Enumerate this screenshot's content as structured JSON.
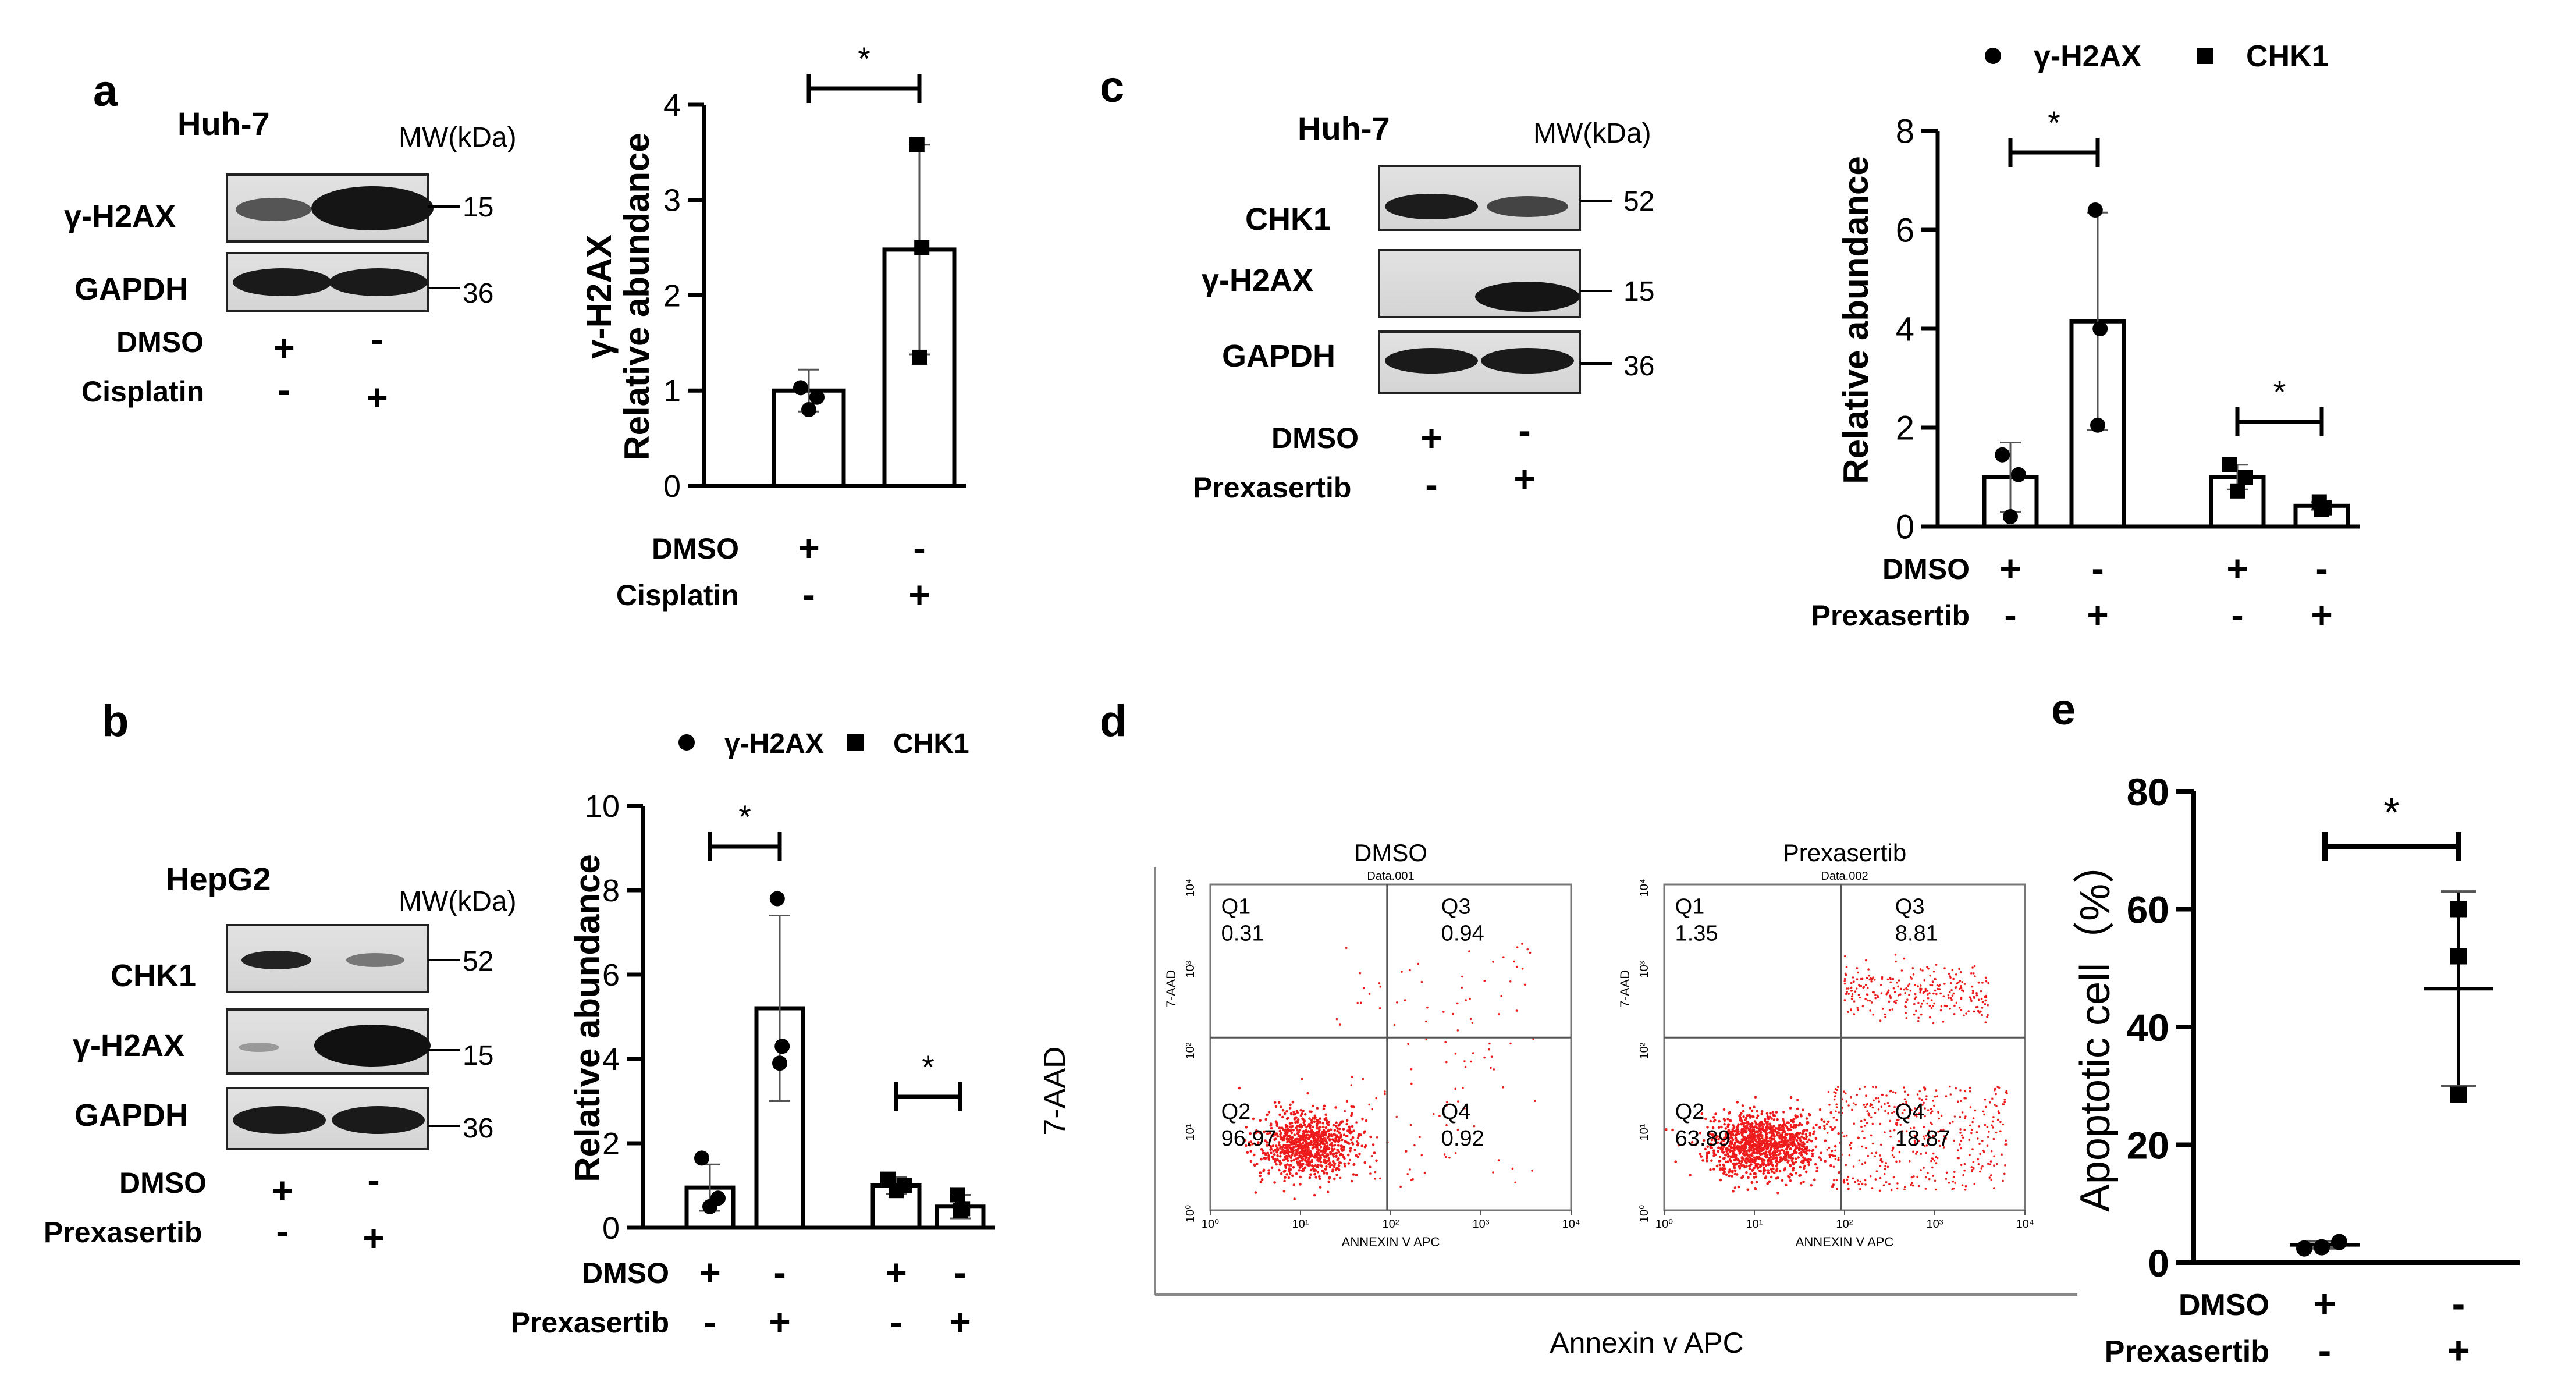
{
  "panels": {
    "a": {
      "label": "a",
      "cell_line": "Huh-7",
      "mw_header": "MW(kDa)",
      "blot_rows": [
        {
          "name": "γ-H2AX",
          "mw": "15"
        },
        {
          "name": "GAPDH",
          "mw": "36"
        }
      ],
      "treatments": [
        {
          "name": "DMSO",
          "signs": [
            "+",
            "-"
          ]
        },
        {
          "name": "Cisplatin",
          "signs": [
            "-",
            "+"
          ]
        }
      ]
    },
    "b": {
      "label": "b",
      "cell_line": "HepG2",
      "mw_header": "MW(kDa)",
      "blot_rows": [
        {
          "name": "CHK1",
          "mw": "52"
        },
        {
          "name": "γ-H2AX",
          "mw": "15"
        },
        {
          "name": "GAPDH",
          "mw": "36"
        }
      ],
      "treatments": [
        {
          "name": "DMSO",
          "signs": [
            "+",
            "-"
          ]
        },
        {
          "name": "Prexasertib",
          "signs": [
            "-",
            "+"
          ]
        }
      ]
    },
    "c": {
      "label": "c",
      "cell_line": "Huh-7",
      "mw_header": "MW(kDa)",
      "blot_rows": [
        {
          "name": "CHK1",
          "mw": "52"
        },
        {
          "name": "γ-H2AX",
          "mw": "15"
        },
        {
          "name": "GAPDH",
          "mw": "36"
        }
      ],
      "treatments": [
        {
          "name": "DMSO",
          "signs": [
            "+",
            "-"
          ]
        },
        {
          "name": "Prexasertib",
          "signs": [
            "-",
            "+"
          ]
        }
      ]
    },
    "d": {
      "label": "d",
      "y_axis": "7-AAD",
      "x_axis": "Annexin v APC",
      "plot_y_label": "7-AAD",
      "plot_x_label": "ANNEXIN V APC",
      "ticks": [
        "10⁰",
        "10¹",
        "10²",
        "10³",
        "10⁴"
      ],
      "plots": [
        {
          "title": "DMSO",
          "subtitle": "Data.001",
          "Q1": "0.31",
          "Q2": "96.97",
          "Q3": "0.94",
          "Q4": "0.92"
        },
        {
          "title": "Prexasertib",
          "subtitle": "Data.002",
          "Q1": "1.35",
          "Q2": "63.89",
          "Q3": "8.81",
          "Q4": "18.87"
        }
      ],
      "q_names": [
        "Q1",
        "Q2",
        "Q3",
        "Q4"
      ],
      "scatter_color": "#ee1c1c"
    },
    "e": {
      "label": "e"
    }
  },
  "chart_data": [
    {
      "id": "a",
      "type": "bar",
      "ylabel_lines": [
        "γ-H2AX",
        "Relative abundance"
      ],
      "ylim": [
        0,
        4
      ],
      "yticks": [
        0,
        1,
        2,
        3,
        4
      ],
      "bars": [
        {
          "mean": 1.0,
          "sd": 0.22,
          "points": [
            1.03,
            0.93,
            0.8
          ],
          "marker": "circle"
        },
        {
          "mean": 2.48,
          "sd": 1.1,
          "points": [
            3.58,
            2.5,
            1.35
          ],
          "marker": "square"
        }
      ],
      "significance": [
        {
          "from": 0,
          "to": 1,
          "label": "*"
        }
      ],
      "x_rows": [
        {
          "name": "DMSO",
          "signs": [
            "+",
            "-"
          ]
        },
        {
          "name": "Cisplatin",
          "signs": [
            "-",
            "+"
          ]
        }
      ]
    },
    {
      "id": "b",
      "type": "bar",
      "ylabel": "Relative abundance",
      "ylim": [
        0,
        10
      ],
      "yticks": [
        0,
        2,
        4,
        6,
        8,
        10
      ],
      "legend": [
        {
          "marker": "circle",
          "label": "γ-H2AX"
        },
        {
          "marker": "square",
          "label": "CHK1"
        }
      ],
      "bars": [
        {
          "mean": 0.95,
          "sd": 0.55,
          "points": [
            1.65,
            0.7,
            0.5
          ],
          "marker": "circle"
        },
        {
          "mean": 5.2,
          "sd": 2.2,
          "points": [
            7.8,
            4.3,
            3.9
          ],
          "marker": "circle"
        },
        {
          "mean": 1.0,
          "sd": 0.2,
          "points": [
            1.15,
            1.0,
            0.88
          ],
          "marker": "square"
        },
        {
          "mean": 0.5,
          "sd": 0.28,
          "points": [
            0.78,
            0.45,
            0.4
          ],
          "marker": "square"
        }
      ],
      "significance": [
        {
          "from": 0,
          "to": 1,
          "label": "*"
        },
        {
          "from": 2,
          "to": 3,
          "label": "*"
        }
      ],
      "x_rows": [
        {
          "name": "DMSO",
          "signs": [
            "+",
            "-",
            "+",
            "-"
          ]
        },
        {
          "name": "Prexasertib",
          "signs": [
            "-",
            "+",
            "-",
            "+"
          ]
        }
      ]
    },
    {
      "id": "c",
      "type": "bar",
      "ylabel": "Relative abundance",
      "ylim": [
        0,
        8
      ],
      "yticks": [
        0,
        2,
        4,
        6,
        8
      ],
      "legend": [
        {
          "marker": "circle",
          "label": "γ-H2AX"
        },
        {
          "marker": "square",
          "label": "CHK1"
        }
      ],
      "bars": [
        {
          "mean": 1.0,
          "sd": 0.7,
          "points": [
            1.45,
            1.05,
            0.2
          ],
          "marker": "circle"
        },
        {
          "mean": 4.15,
          "sd": 2.2,
          "points": [
            6.4,
            4.0,
            2.05
          ],
          "marker": "circle"
        },
        {
          "mean": 1.0,
          "sd": 0.25,
          "points": [
            1.25,
            1.0,
            0.72
          ],
          "marker": "square"
        },
        {
          "mean": 0.42,
          "sd": 0.08,
          "points": [
            0.5,
            0.38,
            0.35
          ],
          "marker": "square"
        }
      ],
      "significance": [
        {
          "from": 0,
          "to": 1,
          "label": "*"
        },
        {
          "from": 2,
          "to": 3,
          "label": "*"
        }
      ],
      "x_rows": [
        {
          "name": "DMSO",
          "signs": [
            "+",
            "-",
            "+",
            "-"
          ]
        },
        {
          "name": "Prexasertib",
          "signs": [
            "-",
            "+",
            "-",
            "+"
          ]
        }
      ]
    },
    {
      "id": "e",
      "type": "scatter",
      "ylabel": "Apoptotic cell（%）",
      "ylim": [
        0,
        80
      ],
      "yticks": [
        0,
        20,
        40,
        60,
        80
      ],
      "groups": [
        {
          "mean": 3.0,
          "sd": 0.6,
          "points": [
            3.5,
            2.6,
            2.4
          ]
        },
        {
          "mean": 46.5,
          "sd": 16.5,
          "points": [
            60,
            52,
            28.5
          ]
        }
      ],
      "significance": [
        {
          "from": 0,
          "to": 1,
          "label": "*"
        }
      ],
      "x_rows": [
        {
          "name": "DMSO",
          "signs": [
            "+",
            "-"
          ]
        },
        {
          "name": "Prexasertib",
          "signs": [
            "-",
            "+"
          ]
        }
      ]
    }
  ]
}
